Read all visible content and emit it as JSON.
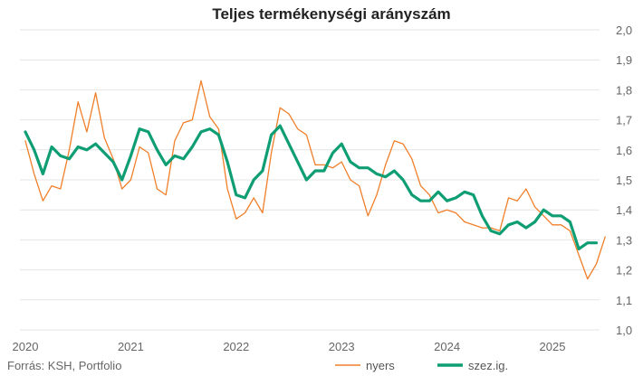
{
  "chart_data": {
    "type": "line",
    "title": "Teljes termékenységi arányszám",
    "source": "Forrás: KSH, Portfolio",
    "xlabel": "",
    "ylabel": "",
    "ylim": [
      1.0,
      2.0
    ],
    "y_ticks": [
      "2,0",
      "1,9",
      "1,8",
      "1,7",
      "1,6",
      "1,5",
      "1,4",
      "1,3",
      "1,2",
      "1,1",
      "1,0"
    ],
    "x_ticks": [
      "2020",
      "2021",
      "2022",
      "2023",
      "2024",
      "2025"
    ],
    "x_start": "2020-01",
    "grid": "horizontal",
    "y_axis_position": "right",
    "legend_position": "bottom-right",
    "series": [
      {
        "name": "nyers",
        "color": "#f07f2a",
        "values": [
          1.63,
          1.52,
          1.43,
          1.48,
          1.47,
          1.6,
          1.76,
          1.66,
          1.79,
          1.64,
          1.57,
          1.47,
          1.5,
          1.61,
          1.59,
          1.47,
          1.45,
          1.63,
          1.69,
          1.7,
          1.83,
          1.71,
          1.67,
          1.47,
          1.37,
          1.39,
          1.44,
          1.39,
          1.59,
          1.74,
          1.72,
          1.67,
          1.65,
          1.55,
          1.55,
          1.54,
          1.56,
          1.5,
          1.48,
          1.38,
          1.45,
          1.55,
          1.63,
          1.62,
          1.57,
          1.48,
          1.45,
          1.39,
          1.4,
          1.39,
          1.36,
          1.35,
          1.34,
          1.34,
          1.33,
          1.44,
          1.43,
          1.47,
          1.41,
          1.38,
          1.35,
          1.35,
          1.33,
          1.25,
          1.17,
          1.22,
          1.31
        ]
      },
      {
        "name": "szez.ig.",
        "color": "#0f9e73",
        "values": [
          1.66,
          1.6,
          1.52,
          1.61,
          1.58,
          1.57,
          1.61,
          1.6,
          1.62,
          1.59,
          1.56,
          1.5,
          1.58,
          1.67,
          1.66,
          1.6,
          1.55,
          1.58,
          1.57,
          1.61,
          1.66,
          1.67,
          1.65,
          1.56,
          1.45,
          1.44,
          1.5,
          1.53,
          1.65,
          1.68,
          1.62,
          1.56,
          1.5,
          1.53,
          1.53,
          1.59,
          1.62,
          1.56,
          1.54,
          1.54,
          1.52,
          1.51,
          1.53,
          1.5,
          1.45,
          1.43,
          1.43,
          1.46,
          1.43,
          1.44,
          1.46,
          1.45,
          1.38,
          1.33,
          1.32,
          1.35,
          1.36,
          1.34,
          1.36,
          1.4,
          1.38,
          1.38,
          1.36,
          1.27,
          1.29,
          1.29
        ]
      }
    ]
  }
}
